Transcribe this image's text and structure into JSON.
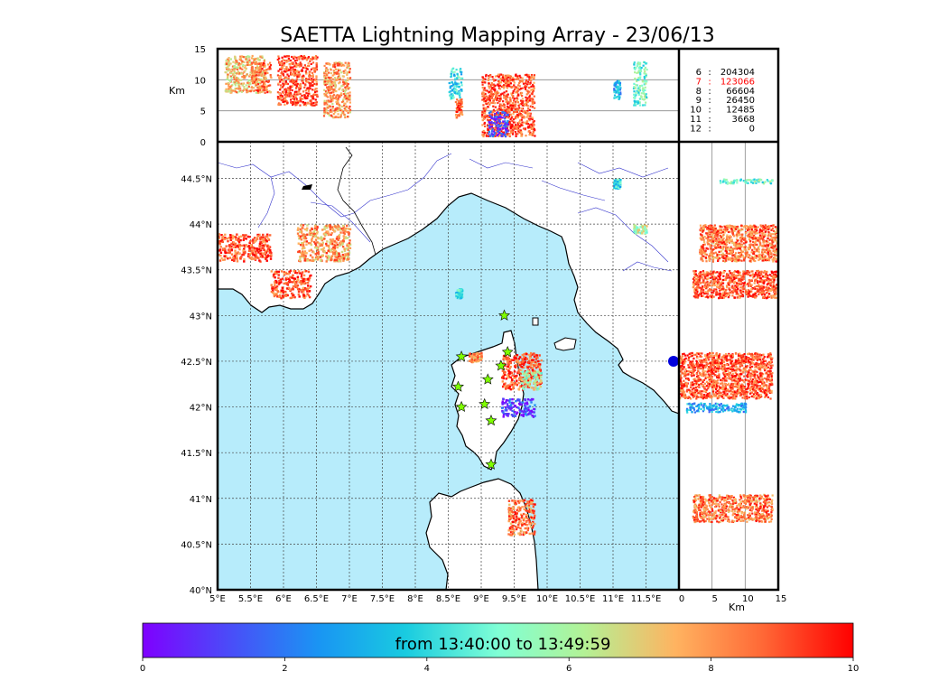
{
  "title": "SAETTA Lightning Mapping Array - 23/06/13",
  "colors": {
    "sea": "#b7ecfb",
    "land": "#ffffff",
    "coast": "#000000",
    "rivers": "#3333cc",
    "grid": "#444444",
    "star_fill": "#7fff00",
    "station_dot": "#0000dd",
    "highlight_count": "#ff0000",
    "panel_gridline": "#888888"
  },
  "chart_data": [
    {
      "type": "scatter",
      "panel": "altitude-vs-longitude",
      "ylabel": "Km",
      "ylim": [
        0,
        15
      ],
      "yticks": [
        "0",
        "5",
        "10",
        "15"
      ],
      "xlim": [
        5,
        12
      ],
      "gridlines_y": [
        5,
        10
      ],
      "clusters": [
        {
          "lon": [
            5.1,
            5.7
          ],
          "alt": [
            8,
            14
          ],
          "t": 7.5
        },
        {
          "lon": [
            5.5,
            5.8
          ],
          "alt": [
            8,
            13
          ],
          "t": 8.5
        },
        {
          "lon": [
            5.9,
            6.5
          ],
          "alt": [
            6,
            14
          ],
          "t": 9
        },
        {
          "lon": [
            6.6,
            7.0
          ],
          "alt": [
            4,
            13
          ],
          "t": 8
        },
        {
          "lon": [
            8.5,
            8.7
          ],
          "alt": [
            7,
            12
          ],
          "t": 4
        },
        {
          "lon": [
            8.6,
            8.7
          ],
          "alt": [
            4,
            7
          ],
          "t": 9
        },
        {
          "lon": [
            9.0,
            9.8
          ],
          "alt": [
            1,
            11
          ],
          "t": 9
        },
        {
          "lon": [
            9.1,
            9.4
          ],
          "alt": [
            1,
            5
          ],
          "t": 1
        },
        {
          "lon": [
            11.3,
            11.5
          ],
          "alt": [
            6,
            13
          ],
          "t": 5
        },
        {
          "lon": [
            11.0,
            11.1
          ],
          "alt": [
            7,
            10
          ],
          "t": 3
        }
      ]
    },
    {
      "type": "scatter",
      "panel": "map-lat-lon",
      "xlim": [
        5,
        12
      ],
      "ylim": [
        40,
        44.9
      ],
      "xticks": [
        "5°E",
        "5.5°E",
        "6°E",
        "6.5°E",
        "7°E",
        "7.5°E",
        "8°E",
        "8.5°E",
        "9°E",
        "9.5°E",
        "10°E",
        "10.5°E",
        "11°E",
        "11.5°E"
      ],
      "yticks": [
        "40°N",
        "40.5°N",
        "41°N",
        "41.5°N",
        "42°N",
        "42.5°N",
        "43°N",
        "43.5°N",
        "44°N",
        "44.5°N"
      ],
      "grid": true,
      "clusters": [
        {
          "lon": [
            5.0,
            5.8
          ],
          "lat": [
            43.6,
            43.9
          ],
          "t": 9
        },
        {
          "lon": [
            5.8,
            6.4
          ],
          "lat": [
            43.2,
            43.5
          ],
          "t": 9
        },
        {
          "lon": [
            6.2,
            7.0
          ],
          "lat": [
            43.6,
            44.0
          ],
          "t": 8
        },
        {
          "lon": [
            8.6,
            8.7
          ],
          "lat": [
            43.2,
            43.3
          ],
          "t": 4
        },
        {
          "lon": [
            9.3,
            9.9
          ],
          "lat": [
            42.2,
            42.6
          ],
          "t": 9
        },
        {
          "lon": [
            9.6,
            9.9
          ],
          "lat": [
            42.2,
            42.4
          ],
          "t": 6
        },
        {
          "lon": [
            9.3,
            9.8
          ],
          "lat": [
            41.9,
            42.1
          ],
          "t": 1
        },
        {
          "lon": [
            8.8,
            9.0
          ],
          "lat": [
            42.5,
            42.6
          ],
          "t": 8
        },
        {
          "lon": [
            9.4,
            9.8
          ],
          "lat": [
            40.6,
            41.0
          ],
          "t": 8.5
        },
        {
          "lon": [
            11.3,
            11.5
          ],
          "lat": [
            43.9,
            44.0
          ],
          "t": 6
        },
        {
          "lon": [
            11.0,
            11.1
          ],
          "lat": [
            44.4,
            44.5
          ],
          "t": 4
        }
      ],
      "stations": [
        [
          9.35,
          43.0
        ],
        [
          8.7,
          42.55
        ],
        [
          8.65,
          42.22
        ],
        [
          8.7,
          42.0
        ],
        [
          9.1,
          42.3
        ],
        [
          9.3,
          42.45
        ],
        [
          9.4,
          42.6
        ],
        [
          9.05,
          42.03
        ],
        [
          9.15,
          41.85
        ],
        [
          9.15,
          41.37
        ]
      ]
    },
    {
      "type": "scatter",
      "panel": "latitude-vs-altitude",
      "xlabel": "Km",
      "xlim": [
        0,
        15
      ],
      "xticks": [
        "0",
        "5",
        "10",
        "15"
      ],
      "gridlines_x": [
        5,
        10
      ],
      "clusters": [
        {
          "lat": [
            44.45,
            44.5
          ],
          "alt": [
            6,
            14
          ],
          "t": 5
        },
        {
          "lat": [
            43.6,
            44.0
          ],
          "alt": [
            3,
            15
          ],
          "t": 8.5
        },
        {
          "lat": [
            43.2,
            43.5
          ],
          "alt": [
            2,
            15
          ],
          "t": 9
        },
        {
          "lat": [
            42.1,
            42.6
          ],
          "alt": [
            0,
            14
          ],
          "t": 9
        },
        {
          "lat": [
            41.95,
            42.05
          ],
          "alt": [
            1,
            10
          ],
          "t": 3
        },
        {
          "lat": [
            40.75,
            41.05
          ],
          "alt": [
            2,
            14
          ],
          "t": 8.5
        }
      ]
    },
    {
      "type": "table",
      "panel": "source-counts",
      "rows": [
        {
          "label": "6",
          "value": "204304",
          "highlight": false
        },
        {
          "label": "7",
          "value": "123066",
          "highlight": true
        },
        {
          "label": "8",
          "value": "66604",
          "highlight": false
        },
        {
          "label": "9",
          "value": "26450",
          "highlight": false
        },
        {
          "label": "10",
          "value": "12485",
          "highlight": false
        },
        {
          "label": "11",
          "value": "3668",
          "highlight": false
        },
        {
          "label": "12",
          "value": "0",
          "highlight": false
        }
      ]
    },
    {
      "type": "heatmap",
      "panel": "colorbar",
      "label": "from 13:40:00 to 13:49:59",
      "range": [
        0,
        10
      ],
      "ticks": [
        "0",
        "2",
        "4",
        "6",
        "8",
        "10"
      ],
      "colormap": "rainbow"
    }
  ]
}
